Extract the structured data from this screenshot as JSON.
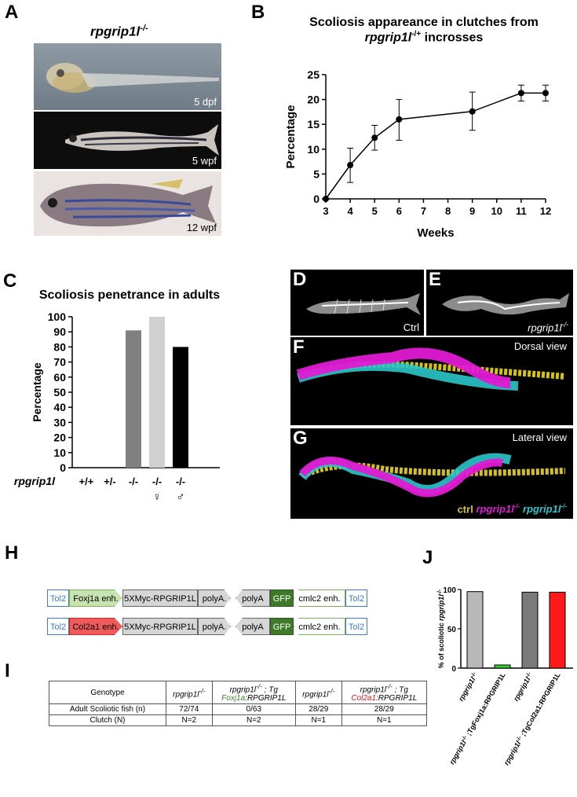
{
  "panels": {
    "a": "A",
    "b": "B",
    "c": "C",
    "d": "D",
    "e": "E",
    "f": "F",
    "g": "G",
    "h": "H",
    "i": "I",
    "j": "J"
  },
  "panel_a": {
    "title_gene": "rpgrip1l",
    "title_sup": "-/-",
    "photos": [
      {
        "label": "5 dpf"
      },
      {
        "label": "5 wpf"
      },
      {
        "label": "12 wpf"
      }
    ]
  },
  "panel_d": {
    "label": "Ctrl"
  },
  "panel_e": {
    "label_gene": "rpgrip1l",
    "label_sup": "-/-"
  },
  "panel_f": {
    "label": "Dorsal view"
  },
  "panel_g": {
    "label": "Lateral view",
    "legend_ctrl": "ctrl",
    "legend_mut1_gene": "rpgrip1l",
    "legend_mut1_sup": "-/-",
    "legend_mut2_gene": "rpgrip1l",
    "legend_mut2_sup": "-/-",
    "colors": {
      "ctrl": "#d4c21a",
      "mut1": "#e01ad4",
      "mut2": "#2ac6c9"
    }
  },
  "panel_h": {
    "constructs": [
      {
        "tol2_left": "Tol2",
        "enh": "Foxj1a enh.",
        "enh_color": "#c6e3b0",
        "enh_border": "#7fb35a",
        "cds": "5XMyc-RPGRIP1L",
        "polyA1": "polyA.",
        "polyA2": "polyA",
        "gfp": "GFP",
        "cmlc2": "cmlc2 enh.",
        "tol2_right": "Tol2"
      },
      {
        "tol2_left": "Tol2",
        "enh": "Col2a1 enh.",
        "enh_color": "#f05a5a",
        "enh_border": "#c52a2a",
        "cds": "5XMyc-RPGRIP1L",
        "polyA1": "polyA.",
        "polyA2": "polyA",
        "gfp": "GFP",
        "cmlc2": "cmlc2 enh.",
        "tol2_right": "Tol2"
      }
    ]
  },
  "panel_i": {
    "row_labels": [
      "Genotype",
      "Adult Scoliotic fish (n)",
      "Clutch (N)"
    ],
    "columns": [
      {
        "gene": "rpgrip1l",
        "sup": "-/-",
        "tg": "",
        "tg_gene": "",
        "tg_color": ""
      },
      {
        "gene": "rpgrip1l",
        "sup": "-/-",
        "tg": "; Tg",
        "tg_gene": "Foxj1a",
        "tg_rest": ":RPGRIP1L",
        "tg_color": "#3a8a2a"
      },
      {
        "gene": "rpgrip1l",
        "sup": "-/-",
        "tg": "",
        "tg_gene": "",
        "tg_color": ""
      },
      {
        "gene": "rpgrip1l",
        "sup": "-/-",
        "tg": "; Tg",
        "tg_gene": "Col2a1",
        "tg_rest": ":RPGRIP1L",
        "tg_color": "#e0141e"
      }
    ],
    "scoliotic": [
      "72/74",
      "0/63",
      "28/29",
      "28/29"
    ],
    "clutch": [
      "N=2",
      "N=2",
      "N=1",
      "N=1"
    ]
  },
  "chart_data": [
    {
      "type": "line",
      "title_line1": "Scoliosis appareance in clutches from",
      "title_line2_gene": "rpgrip1l",
      "title_line2_sup": "-/+",
      "title_line2_rest": " incrosses",
      "xlabel": "Weeks",
      "ylabel": "Percentage",
      "x_ticks": [
        3,
        4,
        5,
        6,
        7,
        8,
        9,
        10,
        11,
        12
      ],
      "y_ticks": [
        0,
        5,
        10,
        15,
        20,
        25
      ],
      "xlim": [
        3,
        12
      ],
      "ylim": [
        0,
        25
      ],
      "x": [
        3,
        4,
        5,
        6,
        9,
        11,
        12
      ],
      "y": [
        0,
        6.8,
        12.3,
        16.0,
        17.6,
        21.3,
        21.3
      ],
      "err_low": [
        0,
        3.3,
        9.8,
        11.8,
        13.8,
        19.7,
        19.7
      ],
      "err_high": [
        0,
        10.2,
        14.8,
        20.0,
        21.5,
        22.9,
        22.9
      ]
    },
    {
      "type": "bar",
      "title": "Scoliosis penetrance in adults",
      "ylabel": "Percentage",
      "gene_label": "rpgrip1l",
      "categories": [
        "+/+",
        "+/-",
        "-/-",
        "-/-",
        "-/-"
      ],
      "sex_symbols": [
        "",
        "",
        "",
        "♀",
        "♂"
      ],
      "values": [
        0,
        0,
        91,
        100,
        80
      ],
      "colors": [
        "#808080",
        "#808080",
        "#808080",
        "#d0d0d0",
        "#000000"
      ],
      "y_ticks": [
        0,
        10,
        20,
        30,
        40,
        50,
        60,
        70,
        80,
        90,
        100
      ],
      "ylim": [
        0,
        100
      ]
    },
    {
      "type": "bar",
      "ylabel_prefix": "% of scoliotic ",
      "ylabel_gene": "rpgrip1l",
      "ylabel_sup": "-/-",
      "y_ticks": [
        0,
        50,
        100
      ],
      "ylim": [
        0,
        100
      ],
      "categories": [
        {
          "gene": "rpgrip1l",
          "sup": "-/-",
          "tg": ""
        },
        {
          "gene": "rpgrip1l",
          "sup": "-/-",
          "tg": " ;TgFoxj1a:RPGRIP1L"
        },
        {
          "gene": "rpgrip1l",
          "sup": "-/-",
          "tg": ""
        },
        {
          "gene": "rpgrip1l",
          "sup": "-/-",
          "tg": " ;TgCol2a1:RPGRIP1L"
        }
      ],
      "values": [
        97.3,
        0,
        96.6,
        96.6
      ],
      "colors": [
        "#b8b8b8",
        "#33d233",
        "#7a7a7a",
        "#ff1a1a"
      ]
    }
  ]
}
